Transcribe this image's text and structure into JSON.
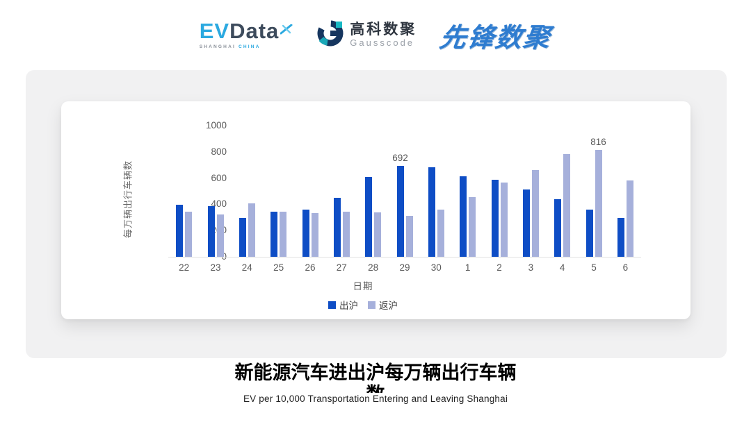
{
  "header": {
    "evdata": {
      "ev": "EV",
      "data": "Data",
      "sub_left": "SHANGHAI",
      "sub_right": "CHINA"
    },
    "gausscode": {
      "cn": "高科数聚",
      "en": "Gausscode"
    },
    "xianfeng": {
      "text": "先锋数聚"
    }
  },
  "chart_data": {
    "type": "bar",
    "categories": [
      "22",
      "23",
      "24",
      "25",
      "26",
      "27",
      "28",
      "29",
      "30",
      "1",
      "2",
      "3",
      "4",
      "5",
      "6"
    ],
    "series": [
      {
        "name": "出沪",
        "color": "#0E4DC5",
        "values": [
          395,
          385,
          296,
          345,
          361,
          448,
          610,
          692,
          684,
          615,
          588,
          515,
          440,
          361,
          298
        ],
        "labels": [
          null,
          null,
          null,
          null,
          null,
          null,
          null,
          "692",
          null,
          null,
          null,
          null,
          null,
          null,
          null
        ]
      },
      {
        "name": "返沪",
        "color": "#A6B0DB",
        "values": [
          344,
          323,
          407,
          342,
          333,
          345,
          339,
          311,
          360,
          456,
          565,
          662,
          785,
          816,
          583
        ],
        "labels": [
          null,
          null,
          null,
          null,
          null,
          null,
          null,
          null,
          null,
          null,
          null,
          null,
          null,
          "816",
          null
        ]
      }
    ],
    "xlabel": "日期",
    "ylabel": "每万辆出行车辆数",
    "ylim": [
      0,
      1000
    ],
    "yticks": [
      0,
      200,
      400,
      600,
      800,
      1000
    ],
    "grid": false,
    "legend_position": "bottom"
  },
  "footer": {
    "title": "新能源汽车进出沪每万辆出行车辆数",
    "title_line1": "新能源汽车进出沪每万辆出行车辆",
    "title_line2": "数",
    "subtitle": "EV per 10,000 Transportation Entering and Leaving Shanghai"
  }
}
